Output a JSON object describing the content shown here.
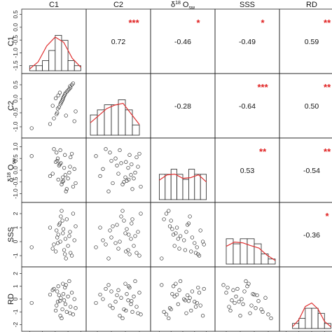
{
  "variables": [
    "C1",
    "C2",
    "δ¹⁸Oₛᵥ",
    "SSS",
    "RD"
  ],
  "variable_labels": [
    {
      "main": "C1",
      "sup": "",
      "sub": ""
    },
    {
      "main": "C2",
      "sup": "",
      "sub": ""
    },
    {
      "main": "δ",
      "sup": "18",
      "main2": " O",
      "sub": "sw"
    },
    {
      "main": "SSS",
      "sup": "",
      "sub": ""
    },
    {
      "main": "RD",
      "sup": "",
      "sub": ""
    }
  ],
  "colors": {
    "star": "#e02020",
    "density": "#e03030",
    "frame": "#222222",
    "points": "#333333",
    "bars": "#ffffff"
  },
  "chart_data": {
    "type": "scatterplot-matrix",
    "upper_panels": "correlation coefficients with significance stars",
    "lower_panels": "scatter",
    "diagonal_panels": "histogram with density curve",
    "correlations": [
      {
        "row": 0,
        "col": 1,
        "value": "0.72",
        "stars": "***"
      },
      {
        "row": 0,
        "col": 2,
        "value": "-0.46",
        "stars": "*"
      },
      {
        "row": 0,
        "col": 3,
        "value": "-0.49",
        "stars": "*"
      },
      {
        "row": 0,
        "col": 4,
        "value": "0.59",
        "stars": "**"
      },
      {
        "row": 1,
        "col": 2,
        "value": "-0.28",
        "stars": ""
      },
      {
        "row": 1,
        "col": 3,
        "value": "-0.64",
        "stars": "***"
      },
      {
        "row": 1,
        "col": 4,
        "value": "0.50",
        "stars": "**"
      },
      {
        "row": 2,
        "col": 3,
        "value": "0.53",
        "stars": "**"
      },
      {
        "row": 2,
        "col": 4,
        "value": "-0.54",
        "stars": "**"
      },
      {
        "row": 3,
        "col": 4,
        "value": "-0.36",
        "stars": "*"
      }
    ],
    "axes": [
      {
        "name": "C1",
        "range": [
          -1.7,
          0.6
        ],
        "ticks": [
          "-1.5",
          "-1.0",
          "-0.5",
          "0.0",
          "0.5"
        ],
        "tick_values": [
          -1.5,
          -1.0,
          -0.5,
          0.0,
          0.5
        ]
      },
      {
        "name": "C2",
        "range": [
          -1.3,
          0.8
        ],
        "ticks": [
          "-1.0",
          "-0.5",
          "0.0",
          "0.5"
        ],
        "tick_values": [
          -1.0,
          -0.5,
          0.0,
          0.5
        ]
      },
      {
        "name": "d18Osw",
        "range": [
          -1.25,
          1.25
        ],
        "ticks": [
          "-1.0",
          "-0.5",
          "0.0",
          "0.5",
          "1.0"
        ],
        "tick_values": [
          -1.0,
          -0.5,
          0.0,
          0.5,
          1.0
        ]
      },
      {
        "name": "SSS",
        "range": [
          -1.6,
          2.6
        ],
        "ticks": [
          "-1",
          "0",
          "1",
          "2"
        ],
        "tick_values": [
          -1,
          0,
          1,
          2
        ]
      },
      {
        "name": "RD",
        "range": [
          -2.3,
          2.3
        ],
        "ticks": [
          "-2",
          "-1",
          "0",
          "1",
          "2"
        ],
        "tick_values": [
          -2,
          -1,
          0,
          1,
          2
        ]
      }
    ],
    "histograms": [
      {
        "var": "C1",
        "bins": [
          -1.5,
          -1.25,
          -1.0,
          -0.75,
          -0.5,
          -0.25,
          0.0,
          0.25,
          0.5
        ],
        "counts": [
          1,
          1,
          2,
          4,
          7,
          6,
          2,
          1
        ],
        "max_count": 7
      },
      {
        "var": "C2",
        "bins": [
          -1.25,
          -1.0,
          -0.75,
          -0.5,
          -0.25,
          0.0,
          0.25,
          0.5
        ],
        "counts": [
          4,
          5,
          6,
          6,
          7,
          5,
          2
        ],
        "max_count": 7
      },
      {
        "var": "d18Osw",
        "bins": [
          -1.0,
          -0.75,
          -0.5,
          -0.25,
          0.0,
          0.25,
          0.5,
          0.75,
          1.0
        ],
        "counts": [
          5,
          5,
          6,
          5,
          4,
          6,
          5,
          5
        ],
        "max_count": 7
      },
      {
        "var": "SSS",
        "bins": [
          -1.0,
          -0.5,
          0.0,
          0.5,
          1.0,
          1.5,
          2.0,
          2.5
        ],
        "counts": [
          5,
          4,
          5,
          5,
          4,
          2,
          1
        ],
        "max_count": 7
      },
      {
        "var": "RD",
        "bins": [
          -1.5,
          -1.0,
          -0.5,
          0.0,
          0.5,
          1.0,
          1.5
        ],
        "counts": [
          1,
          2,
          4,
          4,
          3,
          1
        ],
        "max_count": 7
      }
    ],
    "points": {
      "C1": [
        -1.42,
        -0.55,
        -0.45,
        -0.42,
        -0.4,
        -0.35,
        -0.3,
        -0.28,
        -0.25,
        -0.22,
        -0.2,
        -0.18,
        -0.15,
        -0.12,
        -0.1,
        -0.05,
        0.0,
        0.05,
        0.1,
        0.15,
        0.2,
        0.25,
        0.3,
        -0.6,
        -0.48,
        -0.38,
        -0.32,
        -0.08,
        0.08,
        -0.7
      ],
      "C2": [
        -1.05,
        -0.7,
        -0.55,
        -0.5,
        -0.35,
        -0.3,
        -0.2,
        -0.15,
        -0.1,
        -0.05,
        0.0,
        0.05,
        0.1,
        0.15,
        0.2,
        0.25,
        0.3,
        0.35,
        0.4,
        0.5,
        0.55,
        -0.8,
        -0.45,
        -0.25,
        0.02,
        0.12,
        0.22,
        -0.6,
        0.45,
        -0.9
      ],
      "d18Osw": [
        0.6,
        0.9,
        0.75,
        0.4,
        0.5,
        0.2,
        0.85,
        0.3,
        -0.6,
        -0.5,
        -0.3,
        -0.45,
        0.1,
        0.65,
        -0.2,
        -0.8,
        -0.35,
        -0.1,
        0.55,
        0.7,
        -0.7,
        0.05,
        -0.55,
        -0.15,
        0.35,
        -0.4,
        0.25,
        -0.9,
        0.15,
        -0.25
      ],
      "SSS": [
        -0.4,
        -0.2,
        0.8,
        0.3,
        -0.1,
        1.2,
        0.0,
        1.8,
        2.2,
        1.5,
        0.6,
        0.9,
        -0.6,
        -0.9,
        0.2,
        1.6,
        -0.3,
        0.4,
        -0.8,
        -1.0,
        2.0,
        0.1,
        1.1,
        -0.5,
        -0.7,
        0.5,
        1.3,
        -1.2,
        0.7,
        1.0
      ],
      "RD": [
        -0.3,
        0.8,
        -0.5,
        0.6,
        -0.2,
        0.3,
        -1.3,
        0.1,
        -1.5,
        -0.8,
        1.2,
        0.4,
        -0.1,
        0.9,
        -0.4,
        -1.0,
        0.2,
        1.4,
        -0.6,
        0.5,
        -1.2,
        0.0,
        -0.7,
        0.7,
        -0.9,
        1.0,
        -0.15,
        1.1,
        -1.1,
        0.35
      ]
    },
    "density": [
      {
        "var": "C1",
        "y": [
          0.05,
          0.25,
          0.7,
          0.95,
          0.8,
          0.35,
          0.1
        ]
      },
      {
        "var": "C2",
        "y": [
          0.35,
          0.55,
          0.75,
          0.85,
          0.9,
          0.6,
          0.3
        ]
      },
      {
        "var": "d18Osw",
        "y": [
          0.55,
          0.7,
          0.72,
          0.6,
          0.62,
          0.7,
          0.5
        ]
      },
      {
        "var": "SSS",
        "y": [
          0.5,
          0.62,
          0.6,
          0.52,
          0.45,
          0.25,
          0.1
        ]
      },
      {
        "var": "RD",
        "y": [
          0.05,
          0.25,
          0.62,
          0.72,
          0.55,
          0.2,
          0.05
        ]
      }
    ]
  }
}
